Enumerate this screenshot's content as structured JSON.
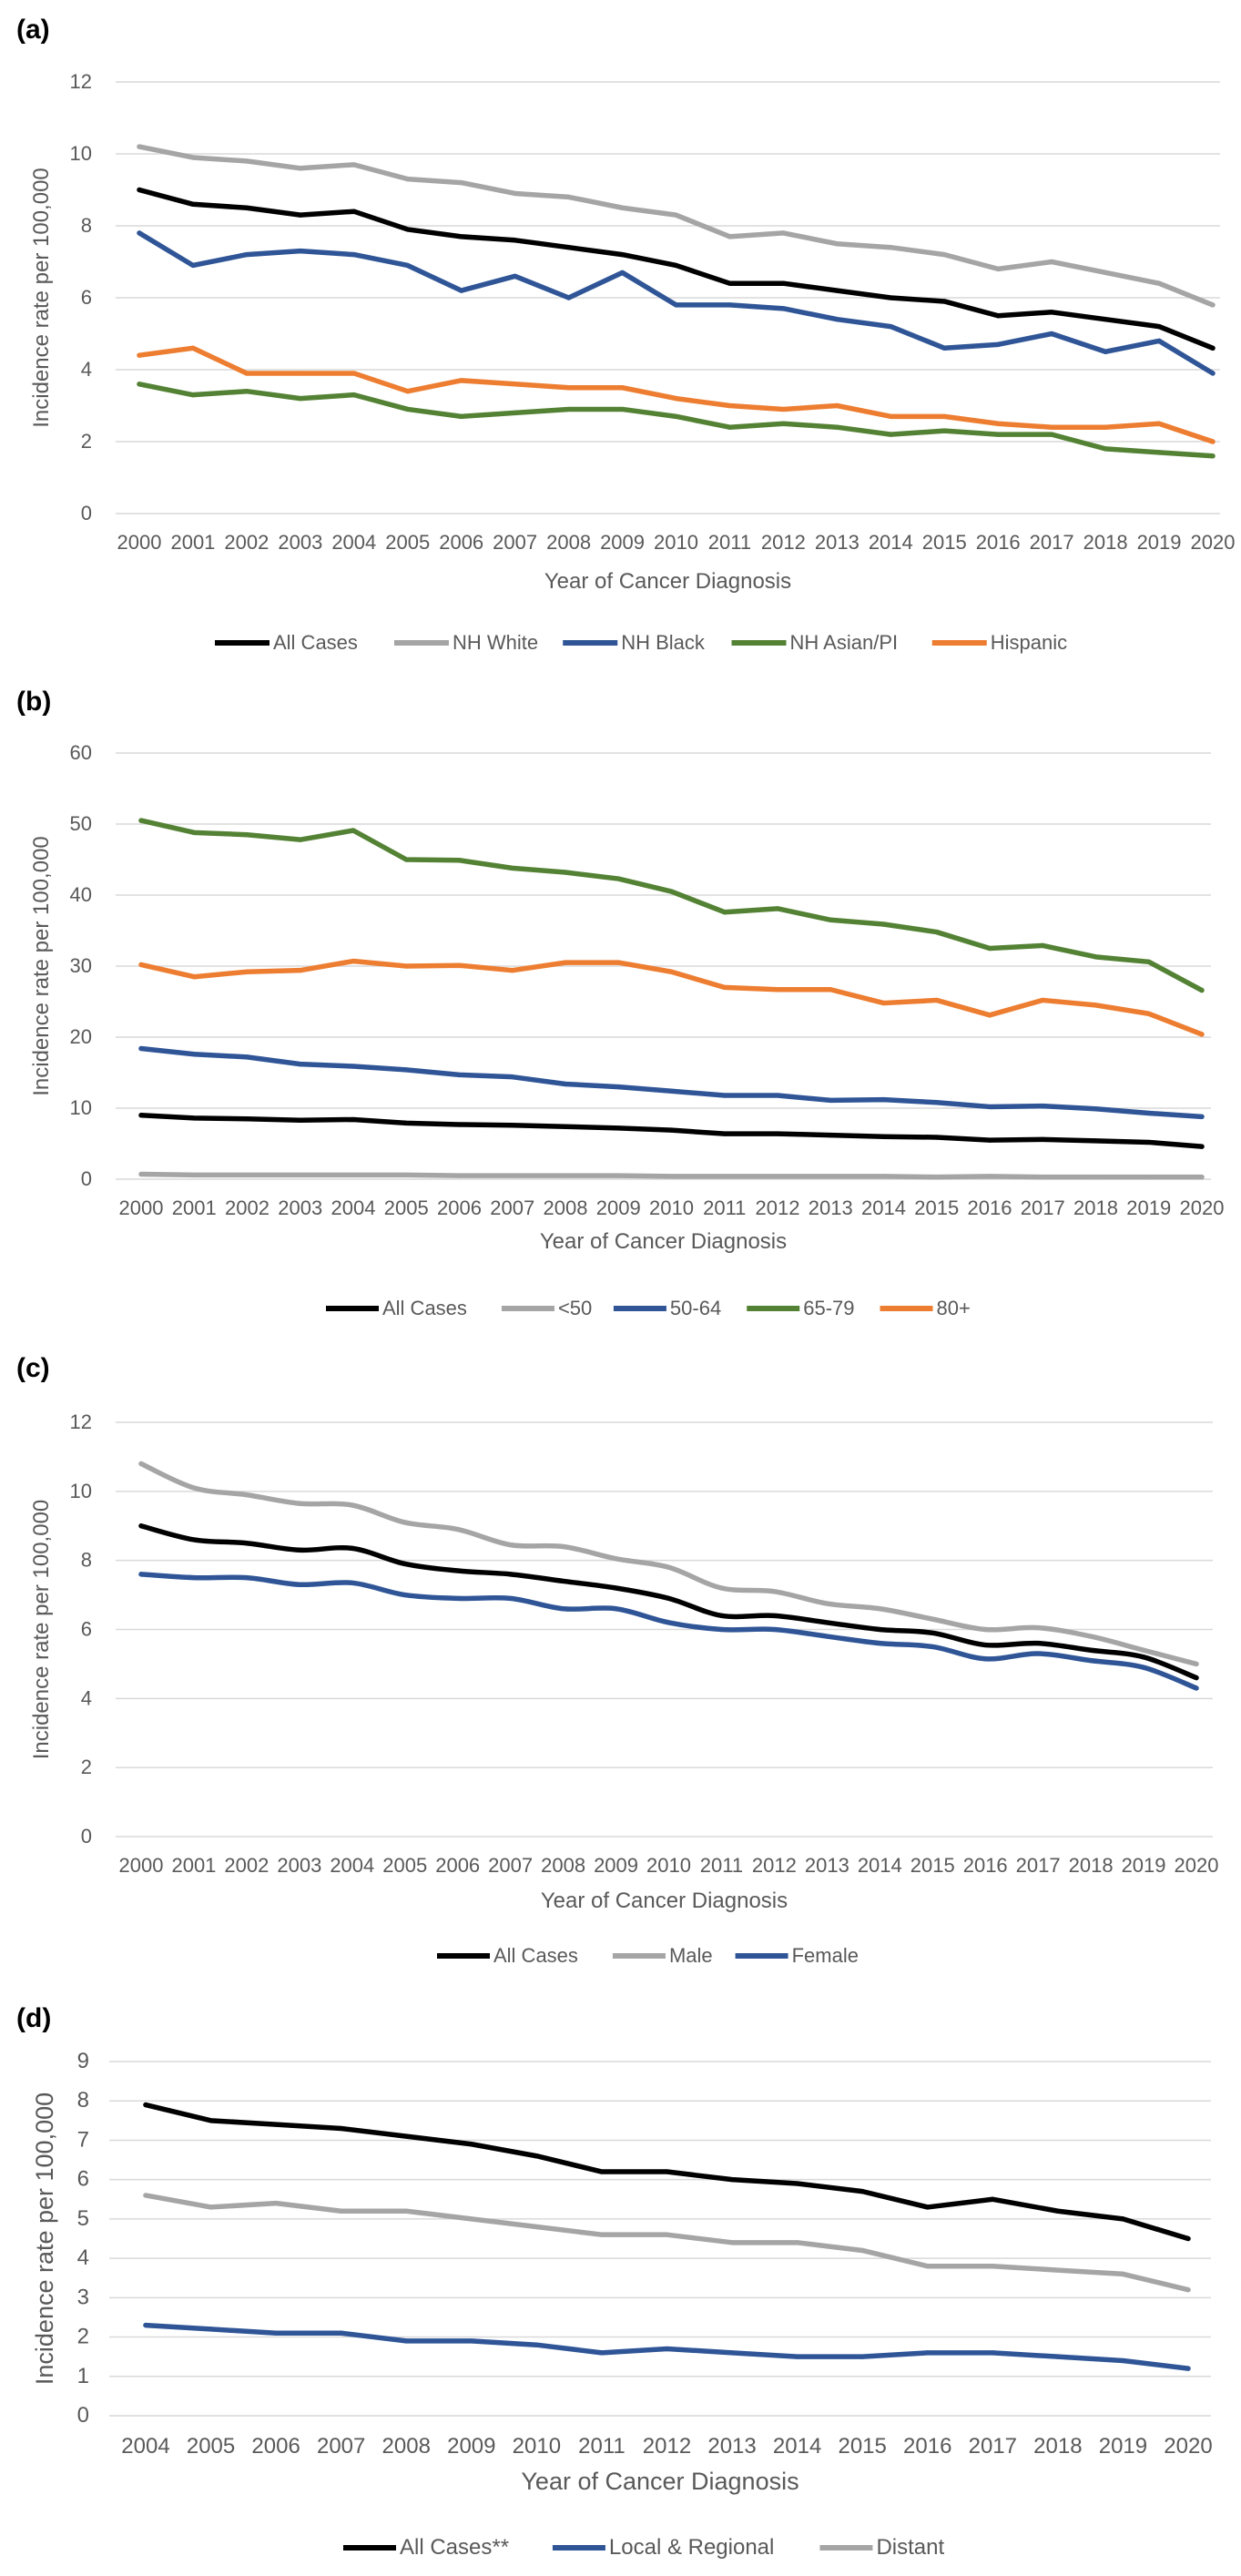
{
  "chart_data": [
    {
      "panel": "(a)",
      "type": "line",
      "xlabel": "Year of Cancer Diagnosis",
      "ylabel": "Incidence rate per 100,000",
      "ylim": [
        0,
        12
      ],
      "yticks": [
        0,
        2,
        4,
        6,
        8,
        10,
        12
      ],
      "grid": true,
      "legend": "bottom",
      "categories": [
        "2000",
        "2001",
        "2002",
        "2003",
        "2004",
        "2005",
        "2006",
        "2007",
        "2008",
        "2009",
        "2010",
        "2011",
        "2012",
        "2013",
        "2014",
        "2015",
        "2016",
        "2017",
        "2018",
        "2019",
        "2020"
      ],
      "series": [
        {
          "name": "All Cases",
          "color": "#000000",
          "values": [
            9.0,
            8.6,
            8.5,
            8.3,
            8.4,
            7.9,
            7.7,
            7.6,
            7.4,
            7.2,
            6.9,
            6.4,
            6.4,
            6.2,
            6.0,
            5.9,
            5.5,
            5.6,
            5.4,
            5.2,
            4.6
          ]
        },
        {
          "name": "NH White",
          "color": "#a5a5a5",
          "values": [
            10.2,
            9.9,
            9.8,
            9.6,
            9.7,
            9.3,
            9.2,
            8.9,
            8.8,
            8.5,
            8.3,
            7.7,
            7.8,
            7.5,
            7.4,
            7.2,
            6.8,
            7.0,
            6.7,
            6.4,
            5.8
          ]
        },
        {
          "name": "NH Black",
          "color": "#2f5597",
          "values": [
            7.8,
            6.9,
            7.2,
            7.3,
            7.2,
            6.9,
            6.2,
            6.6,
            6.0,
            6.7,
            5.8,
            5.8,
            5.7,
            5.4,
            5.2,
            4.6,
            4.7,
            5.0,
            4.5,
            4.8,
            3.9
          ]
        },
        {
          "name": "NH Asian/PI",
          "color": "#548235",
          "values": [
            3.6,
            3.3,
            3.4,
            3.2,
            3.3,
            2.9,
            2.7,
            2.8,
            2.9,
            2.9,
            2.7,
            2.4,
            2.5,
            2.4,
            2.2,
            2.3,
            2.2,
            2.2,
            1.8,
            1.7,
            1.6
          ]
        },
        {
          "name": "Hispanic",
          "color": "#ed7d31",
          "values": [
            4.4,
            4.6,
            3.9,
            3.9,
            3.9,
            3.4,
            3.7,
            3.6,
            3.5,
            3.5,
            3.2,
            3.0,
            2.9,
            3.0,
            2.7,
            2.7,
            2.5,
            2.4,
            2.4,
            2.5,
            2.0
          ]
        }
      ]
    },
    {
      "panel": "(b)",
      "type": "line",
      "xlabel": "Year of Cancer Diagnosis",
      "ylabel": "Incidence rate per 100,000",
      "ylim": [
        0,
        60
      ],
      "yticks": [
        0,
        10,
        20,
        30,
        40,
        50,
        60
      ],
      "grid": true,
      "legend": "bottom",
      "categories": [
        "2000",
        "2001",
        "2002",
        "2003",
        "2004",
        "2005",
        "2006",
        "2007",
        "2008",
        "2009",
        "2010",
        "2011",
        "2012",
        "2013",
        "2014",
        "2015",
        "2016",
        "2017",
        "2018",
        "2019",
        "2020"
      ],
      "series": [
        {
          "name": "All Cases",
          "color": "#000000",
          "values": [
            9.0,
            8.6,
            8.5,
            8.3,
            8.4,
            7.9,
            7.7,
            7.6,
            7.4,
            7.2,
            6.9,
            6.4,
            6.4,
            6.2,
            6.0,
            5.9,
            5.5,
            5.6,
            5.4,
            5.2,
            4.6
          ]
        },
        {
          "name": "<50",
          "color": "#a5a5a5",
          "values": [
            0.7,
            0.6,
            0.6,
            0.6,
            0.6,
            0.6,
            0.5,
            0.5,
            0.5,
            0.5,
            0.4,
            0.4,
            0.4,
            0.4,
            0.4,
            0.3,
            0.4,
            0.3,
            0.3,
            0.3,
            0.3
          ]
        },
        {
          "name": "50-64",
          "color": "#2f5597",
          "values": [
            18.4,
            17.6,
            17.2,
            16.2,
            15.9,
            15.4,
            14.7,
            14.4,
            13.4,
            13.0,
            12.4,
            11.8,
            11.8,
            11.1,
            11.2,
            10.8,
            10.2,
            10.3,
            9.9,
            9.3,
            8.8
          ]
        },
        {
          "name": "65-79",
          "color": "#548235",
          "values": [
            50.5,
            48.8,
            48.5,
            47.8,
            49.1,
            45.0,
            44.9,
            43.8,
            43.2,
            42.3,
            40.5,
            37.6,
            38.1,
            36.5,
            35.9,
            34.8,
            32.5,
            32.9,
            31.3,
            30.6,
            26.6
          ]
        },
        {
          "name": "80+",
          "color": "#ed7d31",
          "values": [
            30.2,
            28.5,
            29.2,
            29.4,
            30.7,
            30.0,
            30.1,
            29.4,
            30.5,
            30.5,
            29.2,
            27.0,
            26.7,
            26.7,
            24.8,
            25.2,
            23.1,
            25.2,
            24.5,
            23.3,
            20.4
          ]
        }
      ]
    },
    {
      "panel": "(c)",
      "type": "line",
      "xlabel": "Year of Cancer Diagnosis",
      "ylabel": "Incidence rate per 100,000",
      "ylim": [
        0,
        12
      ],
      "yticks": [
        0,
        2,
        4,
        6,
        8,
        10,
        12
      ],
      "grid": true,
      "legend": "bottom",
      "smooth": true,
      "categories": [
        "2000",
        "2001",
        "2002",
        "2003",
        "2004",
        "2005",
        "2006",
        "2007",
        "2008",
        "2009",
        "2010",
        "2011",
        "2012",
        "2013",
        "2014",
        "2015",
        "2016",
        "2017",
        "2018",
        "2019",
        "2020"
      ],
      "series": [
        {
          "name": "All Cases",
          "color": "#000000",
          "values": [
            9.0,
            8.6,
            8.5,
            8.3,
            8.35,
            7.9,
            7.7,
            7.6,
            7.4,
            7.2,
            6.9,
            6.4,
            6.4,
            6.2,
            6.0,
            5.9,
            5.55,
            5.6,
            5.4,
            5.2,
            4.6
          ]
        },
        {
          "name": "Male",
          "color": "#a5a5a5",
          "values": [
            10.8,
            10.1,
            9.9,
            9.65,
            9.6,
            9.1,
            8.9,
            8.45,
            8.4,
            8.05,
            7.8,
            7.2,
            7.1,
            6.75,
            6.6,
            6.3,
            6.0,
            6.05,
            5.8,
            5.4,
            5.0
          ]
        },
        {
          "name": "Female",
          "color": "#2f5597",
          "values": [
            7.6,
            7.5,
            7.5,
            7.3,
            7.35,
            7.0,
            6.9,
            6.9,
            6.6,
            6.6,
            6.2,
            6.0,
            6.0,
            5.8,
            5.6,
            5.5,
            5.15,
            5.3,
            5.1,
            4.9,
            4.3
          ]
        }
      ]
    },
    {
      "panel": "(d)",
      "type": "line",
      "xlabel": "Year of Cancer Diagnosis",
      "ylabel": "Incidence rate per 100,000",
      "ylim": [
        0,
        9
      ],
      "yticks": [
        0,
        1,
        2,
        3,
        4,
        5,
        6,
        7,
        8,
        9
      ],
      "grid": true,
      "legend": "bottom",
      "categories": [
        "2004",
        "2005",
        "2006",
        "2007",
        "2008",
        "2009",
        "2010",
        "2011",
        "2012",
        "2013",
        "2014",
        "2015",
        "2016",
        "2017",
        "2018",
        "2019",
        "2020"
      ],
      "series": [
        {
          "name": "All Cases**",
          "color": "#000000",
          "values": [
            7.9,
            7.5,
            7.4,
            7.3,
            7.1,
            6.9,
            6.6,
            6.2,
            6.2,
            6.0,
            5.9,
            5.7,
            5.3,
            5.5,
            5.2,
            5.0,
            4.5
          ]
        },
        {
          "name": "Local & Regional",
          "color": "#2f5597",
          "values": [
            2.3,
            2.2,
            2.1,
            2.1,
            1.9,
            1.9,
            1.8,
            1.6,
            1.7,
            1.6,
            1.5,
            1.5,
            1.6,
            1.6,
            1.5,
            1.4,
            1.2
          ]
        },
        {
          "name": "Distant",
          "color": "#a5a5a5",
          "values": [
            5.6,
            5.3,
            5.4,
            5.2,
            5.2,
            5.0,
            4.8,
            4.6,
            4.6,
            4.4,
            4.4,
            4.2,
            3.8,
            3.8,
            3.7,
            3.6,
            3.2
          ]
        }
      ]
    }
  ]
}
